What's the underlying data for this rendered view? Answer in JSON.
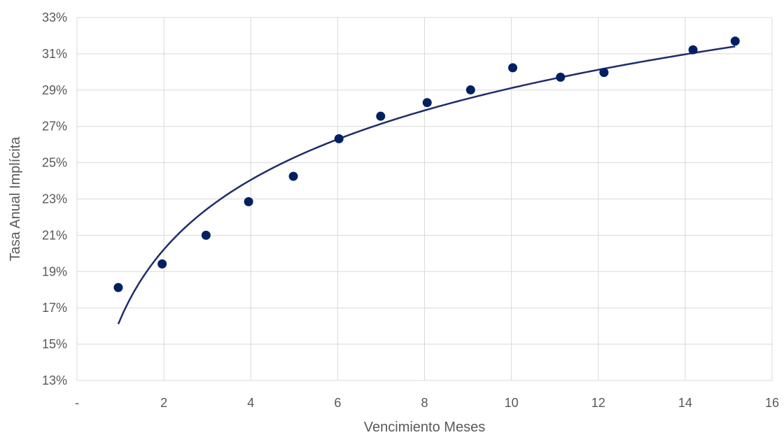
{
  "chart_data": {
    "type": "scatter",
    "title": "",
    "xlabel": "Vencimiento Meses",
    "ylabel": "Tasa Anual Implícita",
    "xlim": [
      0,
      16
    ],
    "ylim": [
      0.13,
      0.33
    ],
    "x_ticks": [
      0,
      2,
      4,
      6,
      8,
      10,
      12,
      14,
      16
    ],
    "x_tick_labels": [
      "-",
      "2",
      "4",
      "6",
      "8",
      "10",
      "12",
      "14",
      "16"
    ],
    "y_ticks": [
      0.13,
      0.15,
      0.17,
      0.19,
      0.21,
      0.23,
      0.25,
      0.27,
      0.29,
      0.31,
      0.33
    ],
    "y_tick_labels": [
      "13%",
      "15%",
      "17%",
      "19%",
      "21%",
      "23%",
      "25%",
      "27%",
      "29%",
      "31%",
      "33%"
    ],
    "grid": true,
    "legend": "none",
    "series": [
      {
        "type": "scatter",
        "color": "#002060",
        "points": [
          {
            "x": 0.95,
            "y": 0.1812
          },
          {
            "x": 1.96,
            "y": 0.1942
          },
          {
            "x": 2.97,
            "y": 0.21
          },
          {
            "x": 3.95,
            "y": 0.2285
          },
          {
            "x": 4.98,
            "y": 0.2425
          },
          {
            "x": 6.03,
            "y": 0.2632
          },
          {
            "x": 6.99,
            "y": 0.2756
          },
          {
            "x": 8.06,
            "y": 0.2831
          },
          {
            "x": 9.06,
            "y": 0.2901
          },
          {
            "x": 10.03,
            "y": 0.3023
          },
          {
            "x": 11.13,
            "y": 0.2971
          },
          {
            "x": 12.13,
            "y": 0.2997
          },
          {
            "x": 14.18,
            "y": 0.3122
          },
          {
            "x": 15.15,
            "y": 0.317
          }
        ]
      },
      {
        "type": "line",
        "color": "#1f2d6b",
        "trendline": "logarithmic",
        "x_range": [
          0.95,
          15.15
        ],
        "coefficients": {
          "a": 0.16392,
          "b": 0.05524
        }
      }
    ]
  }
}
